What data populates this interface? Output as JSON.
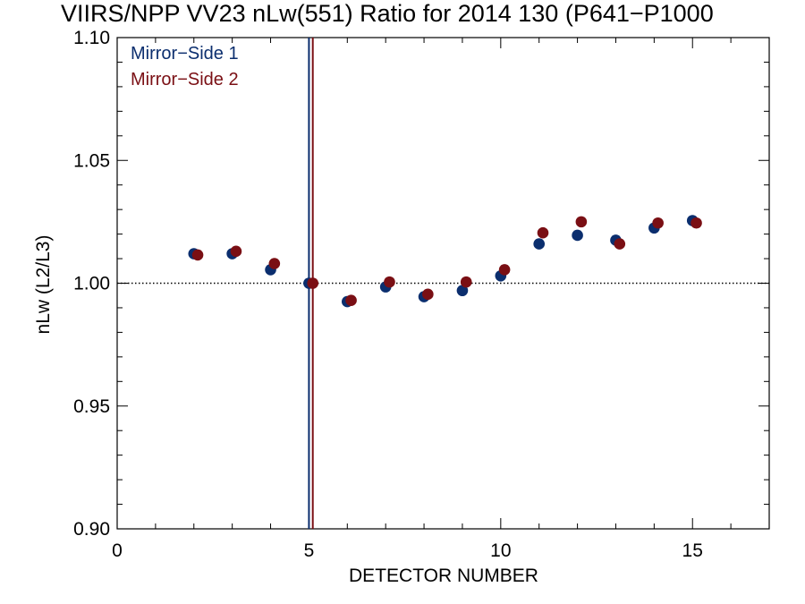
{
  "chart_data": {
    "type": "scatter",
    "title": "VIIRS/NPP VV23 nLw(551) Ratio for 2014 130 (P641−P1000",
    "xlabel": "DETECTOR NUMBER",
    "ylabel": "nLw (L2/L3)",
    "xlim": [
      0,
      17
    ],
    "ylim": [
      0.9,
      1.1
    ],
    "x_ticks": [
      0,
      5,
      10,
      15
    ],
    "x_tick_labels": [
      "0",
      "5",
      "10",
      "15"
    ],
    "y_ticks": [
      0.9,
      0.95,
      1.0,
      1.05,
      1.1
    ],
    "y_tick_labels": [
      "0.90",
      "0.95",
      "1.00",
      "1.05",
      "1.10"
    ],
    "reference_line": {
      "y": 1.0,
      "style": "dotted"
    },
    "vertical_lines": [
      {
        "x": 5.0,
        "color": "#0b2e6e"
      },
      {
        "x": 5.1,
        "color": "#7a0f14"
      }
    ],
    "legend_placement": "top-left",
    "series": [
      {
        "name": "Mirror−Side 1",
        "color": "#0b2e6e",
        "x": [
          2,
          3,
          4,
          5,
          6,
          7,
          8,
          9,
          10,
          11,
          12,
          13,
          14,
          15
        ],
        "y": [
          1.012,
          1.012,
          1.0055,
          1.0,
          0.9925,
          0.9985,
          0.9945,
          0.997,
          1.003,
          1.016,
          1.0195,
          1.0175,
          1.0225,
          1.0255
        ]
      },
      {
        "name": "Mirror−Side 2",
        "color": "#7a0f14",
        "x": [
          2.1,
          3.1,
          4.1,
          5.1,
          6.1,
          7.1,
          8.1,
          9.1,
          10.1,
          11.1,
          12.1,
          13.1,
          14.1,
          15.1
        ],
        "y": [
          1.0115,
          1.013,
          1.008,
          1.0,
          0.993,
          1.0005,
          0.9955,
          1.0005,
          1.0055,
          1.0205,
          1.025,
          1.016,
          1.0245,
          1.0245
        ]
      }
    ]
  }
}
